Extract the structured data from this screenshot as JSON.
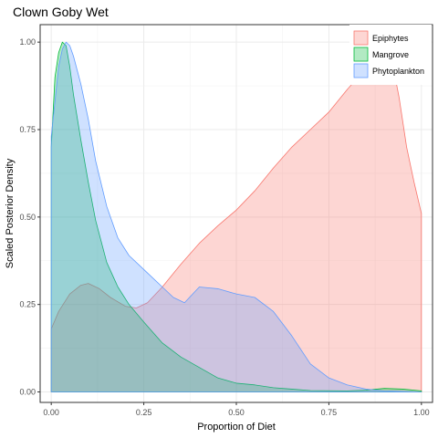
{
  "chart_data": {
    "type": "area",
    "title": "Clown Goby Wet",
    "xlabel": "Proportion of Diet",
    "ylabel": "Scaled Posterior Density",
    "xlim": [
      -0.03,
      1.03
    ],
    "ylim": [
      -0.03,
      1.05
    ],
    "x_ticks": [
      "0.00",
      "0.25",
      "0.50",
      "0.75",
      "1.00"
    ],
    "x_tick_values": [
      0,
      0.25,
      0.5,
      0.75,
      1.0
    ],
    "y_ticks": [
      "0.00",
      "0.25",
      "0.50",
      "0.75",
      "1.00"
    ],
    "y_tick_values": [
      0,
      0.25,
      0.5,
      0.75,
      1.0
    ],
    "grid": true,
    "legend_position": "top-right",
    "series": [
      {
        "name": "Epiphytes",
        "fill": "#f8766d",
        "stroke": "#f8766d",
        "points": [
          [
            0,
            0.18
          ],
          [
            0.02,
            0.23
          ],
          [
            0.05,
            0.28
          ],
          [
            0.08,
            0.305
          ],
          [
            0.1,
            0.31
          ],
          [
            0.13,
            0.295
          ],
          [
            0.16,
            0.27
          ],
          [
            0.2,
            0.245
          ],
          [
            0.23,
            0.24
          ],
          [
            0.26,
            0.255
          ],
          [
            0.3,
            0.3
          ],
          [
            0.35,
            0.365
          ],
          [
            0.4,
            0.425
          ],
          [
            0.45,
            0.475
          ],
          [
            0.5,
            0.52
          ],
          [
            0.55,
            0.575
          ],
          [
            0.6,
            0.64
          ],
          [
            0.65,
            0.7
          ],
          [
            0.7,
            0.75
          ],
          [
            0.75,
            0.8
          ],
          [
            0.8,
            0.865
          ],
          [
            0.85,
            0.925
          ],
          [
            0.88,
            0.96
          ],
          [
            0.9,
            0.98
          ],
          [
            0.92,
            0.95
          ],
          [
            0.94,
            0.84
          ],
          [
            0.96,
            0.7
          ],
          [
            0.98,
            0.6
          ],
          [
            1.0,
            0.51
          ]
        ]
      },
      {
        "name": "Mangrove",
        "fill": "#00ba38",
        "stroke": "#00ba38",
        "points": [
          [
            0,
            0.7
          ],
          [
            0.005,
            0.8
          ],
          [
            0.01,
            0.9
          ],
          [
            0.02,
            0.97
          ],
          [
            0.03,
            1.0
          ],
          [
            0.04,
            0.99
          ],
          [
            0.05,
            0.93
          ],
          [
            0.06,
            0.85
          ],
          [
            0.08,
            0.72
          ],
          [
            0.1,
            0.6
          ],
          [
            0.12,
            0.49
          ],
          [
            0.15,
            0.37
          ],
          [
            0.18,
            0.3
          ],
          [
            0.21,
            0.25
          ],
          [
            0.25,
            0.2
          ],
          [
            0.3,
            0.14
          ],
          [
            0.35,
            0.1
          ],
          [
            0.4,
            0.07
          ],
          [
            0.45,
            0.04
          ],
          [
            0.5,
            0.025
          ],
          [
            0.55,
            0.02
          ],
          [
            0.6,
            0.012
          ],
          [
            0.65,
            0.008
          ],
          [
            0.7,
            0.004
          ],
          [
            0.8,
            0.003
          ],
          [
            0.85,
            0.005
          ],
          [
            0.9,
            0.01
          ],
          [
            0.95,
            0.008
          ],
          [
            1.0,
            0.003
          ]
        ]
      },
      {
        "name": "Phytoplankton",
        "fill": "#619cff",
        "stroke": "#619cff",
        "points": [
          [
            0,
            0.73
          ],
          [
            0.01,
            0.83
          ],
          [
            0.02,
            0.93
          ],
          [
            0.03,
            0.98
          ],
          [
            0.04,
            1.0
          ],
          [
            0.05,
            0.99
          ],
          [
            0.06,
            0.96
          ],
          [
            0.08,
            0.88
          ],
          [
            0.1,
            0.78
          ],
          [
            0.12,
            0.66
          ],
          [
            0.15,
            0.53
          ],
          [
            0.18,
            0.44
          ],
          [
            0.21,
            0.39
          ],
          [
            0.25,
            0.35
          ],
          [
            0.3,
            0.3
          ],
          [
            0.33,
            0.27
          ],
          [
            0.36,
            0.255
          ],
          [
            0.4,
            0.3
          ],
          [
            0.45,
            0.295
          ],
          [
            0.5,
            0.28
          ],
          [
            0.55,
            0.27
          ],
          [
            0.6,
            0.23
          ],
          [
            0.65,
            0.16
          ],
          [
            0.7,
            0.08
          ],
          [
            0.75,
            0.04
          ],
          [
            0.8,
            0.02
          ],
          [
            0.85,
            0.008
          ],
          [
            0.9,
            0.003
          ],
          [
            1.0,
            0
          ]
        ]
      }
    ]
  }
}
